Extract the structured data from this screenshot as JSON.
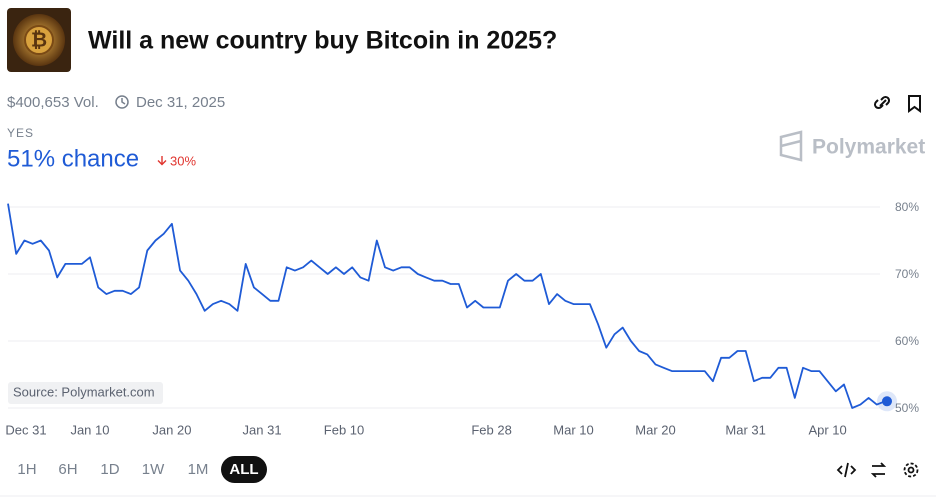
{
  "header": {
    "title": "Will a new country buy Bitcoin in 2025?",
    "volume": "$400,653 Vol.",
    "end_date": "Dec 31, 2025"
  },
  "outcome": {
    "label": "YES",
    "chance": "51% chance",
    "change": "30%"
  },
  "brand": "Polymarket",
  "periods": [
    "1H",
    "6H",
    "1D",
    "1W",
    "1M",
    "ALL"
  ],
  "chart_data": {
    "type": "line",
    "annotation": "Source: Polymarket.com",
    "categories": [
      "Dec 31",
      null,
      null,
      null,
      null,
      null,
      null,
      null,
      null,
      null,
      "Jan 10",
      null,
      null,
      null,
      null,
      null,
      null,
      null,
      null,
      null,
      "Jan 20",
      null,
      null,
      null,
      null,
      null,
      null,
      null,
      null,
      null,
      null,
      "Jan 31",
      null,
      null,
      null,
      null,
      null,
      null,
      null,
      null,
      null,
      "Feb 10",
      null,
      null,
      null,
      null,
      null,
      null,
      null,
      null,
      null,
      null,
      null,
      null,
      null,
      null,
      null,
      null,
      null,
      "Feb 28",
      null,
      null,
      null,
      null,
      null,
      null,
      null,
      null,
      null,
      "Mar 10",
      null,
      null,
      null,
      null,
      null,
      null,
      null,
      null,
      null,
      "Mar 20",
      null,
      null,
      null,
      null,
      null,
      null,
      null,
      null,
      null,
      null,
      "Mar 31",
      null,
      null,
      null,
      null,
      null,
      null,
      null,
      null,
      null,
      "Apr 10",
      null,
      null,
      null,
      null,
      null,
      null,
      null
    ],
    "values": [
      80.5,
      73,
      75,
      74.5,
      75,
      73.5,
      69.5,
      71.5,
      71.5,
      71.5,
      72.5,
      68,
      67,
      67.5,
      67.5,
      67,
      68,
      73.5,
      75,
      76,
      77.5,
      70.5,
      69,
      67,
      64.5,
      65.5,
      66,
      65.5,
      64.5,
      71.5,
      68,
      67,
      66,
      66,
      71,
      70.5,
      71,
      72,
      71,
      70,
      71,
      70,
      71,
      69.5,
      69,
      75,
      71,
      70.5,
      71,
      71,
      70,
      69.5,
      69,
      69,
      68.5,
      68.5,
      65,
      66,
      65,
      65,
      65,
      69,
      70,
      69,
      69,
      70,
      65.5,
      67,
      66,
      65.5,
      65.5,
      65.5,
      62.5,
      59,
      61,
      62,
      60,
      58.5,
      58,
      56.5,
      56,
      55.5,
      55.5,
      55.5,
      55.5,
      55.5,
      54,
      57.5,
      57.5,
      58.5,
      58.5,
      54,
      54.5,
      54.5,
      56,
      56,
      51.5,
      56,
      55.5,
      55.5,
      54,
      52.5,
      53.5,
      50,
      50.5,
      51.5,
      50.5,
      51
    ],
    "color": "#1f5bd6",
    "ylim": [
      48,
      82
    ],
    "yticks": [
      {
        "value": 50,
        "label": "50%"
      },
      {
        "value": 60,
        "label": "60%"
      },
      {
        "value": 70,
        "label": "70%"
      },
      {
        "value": 80,
        "label": "80%"
      }
    ],
    "grid": true
  }
}
